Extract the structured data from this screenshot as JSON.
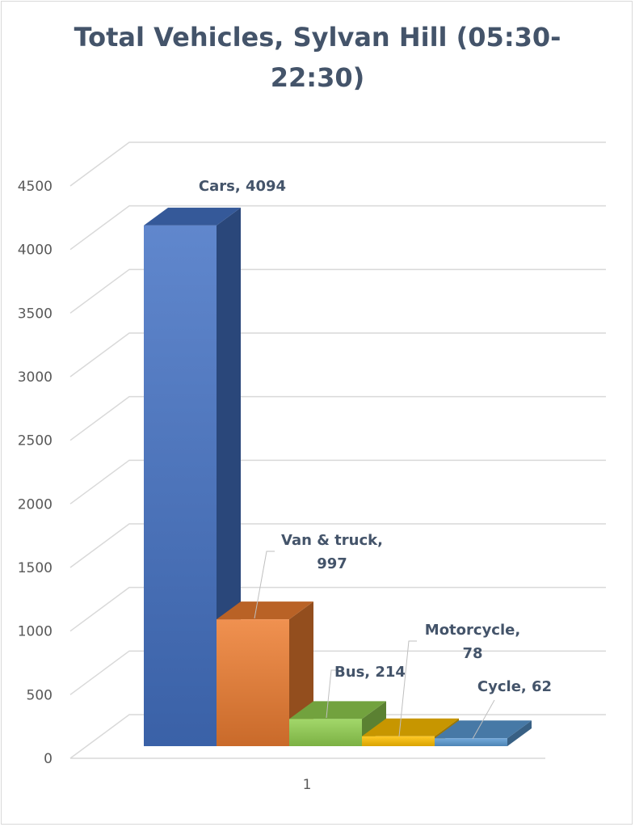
{
  "chart_data": {
    "type": "bar",
    "title_lines": [
      "Total Vehicles, Sylvan Hill (05:30-",
      "22:30)"
    ],
    "categories": [
      "1"
    ],
    "series": [
      {
        "name": "Cars",
        "values": [
          4094
        ],
        "color": "#4472c4",
        "label": [
          "Cars, 4094"
        ]
      },
      {
        "name": "Van & truck",
        "values": [
          997
        ],
        "color": "#ed7d31",
        "label": [
          "Van & truck,",
          "997"
        ]
      },
      {
        "name": "Bus",
        "values": [
          214
        ],
        "color": "#92d050",
        "label": [
          "Bus, 214"
        ]
      },
      {
        "name": "Motorcycle",
        "values": [
          78
        ],
        "color": "#ffc000",
        "label": [
          "Motorcycle,",
          "78"
        ]
      },
      {
        "name": "Cycle",
        "values": [
          62
        ],
        "color": "#5b9bd5",
        "label": [
          "Cycle, 62"
        ]
      }
    ],
    "yticks": [
      "0",
      "500",
      "1000",
      "1500",
      "2000",
      "2500",
      "3000",
      "3500",
      "4000",
      "4500"
    ],
    "ylim": [
      0,
      4500
    ],
    "xlabel": "",
    "ylabel": "",
    "grid": true,
    "legend": "none"
  }
}
